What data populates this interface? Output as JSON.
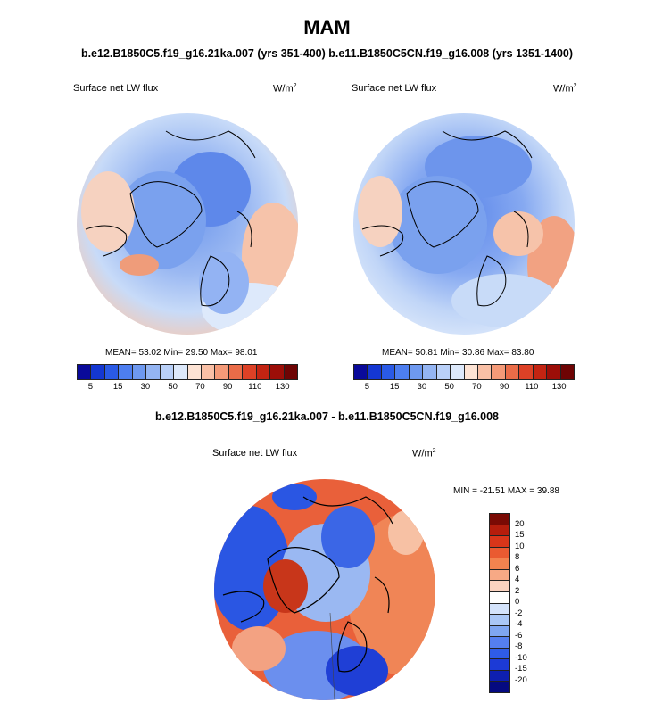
{
  "title": "MAM",
  "subtitle_left": "b.e12.B1850C5.f19_g16.21ka.007 (yrs 351-400)",
  "subtitle_right": "b.e11.B1850C5CN.f19_g16.008 (yrs 1351-1400)",
  "panels": [
    {
      "variable": "Surface net LW flux",
      "units_base": "W/m",
      "units_exp": "2",
      "stats": "MEAN= 53.02  Min= 29.50  Max= 98.01"
    },
    {
      "variable": "Surface net LW flux",
      "units_base": "W/m",
      "units_exp": "2",
      "stats": "MEAN= 50.81  Min= 30.86  Max= 83.80"
    }
  ],
  "colorbar_top": {
    "colors": [
      "#0a0a9a",
      "#1437d2",
      "#2a5ae6",
      "#4d7ef0",
      "#6e99f0",
      "#94b5f3",
      "#b9d0f8",
      "#dde9fb",
      "#fde3d4",
      "#f9c0a6",
      "#f49a78",
      "#ea6c48",
      "#dd4126",
      "#c32412",
      "#9c0e08",
      "#6e0404"
    ],
    "labels": [
      "5",
      "15",
      "30",
      "50",
      "70",
      "90",
      "110",
      "130"
    ]
  },
  "diff_title": "b.e12.B1850C5.f19_g16.21ka.007 - b.e11.B1850C5CN.f19_g16.008",
  "diff_panel": {
    "variable": "Surface net LW flux",
    "units_base": "W/m",
    "units_exp": "2",
    "minmax": "MIN = -21.51  MAX =  39.88"
  },
  "colorbar_diff": {
    "colors": [
      "#7a0a04",
      "#b51d0c",
      "#d8361a",
      "#ea5a31",
      "#f3834f",
      "#f7a985",
      "#fbd3c0",
      "#ffffff",
      "#d4e3fb",
      "#aac7f6",
      "#7fa6f1",
      "#557ff0",
      "#2f5ce8",
      "#1c3ad6",
      "#0e1fb0",
      "#050a80"
    ],
    "labels": [
      "20",
      "15",
      "10",
      "8",
      "6",
      "4",
      "2",
      "0",
      "-2",
      "-4",
      "-6",
      "-8",
      "-10",
      "-15",
      "-20"
    ]
  }
}
